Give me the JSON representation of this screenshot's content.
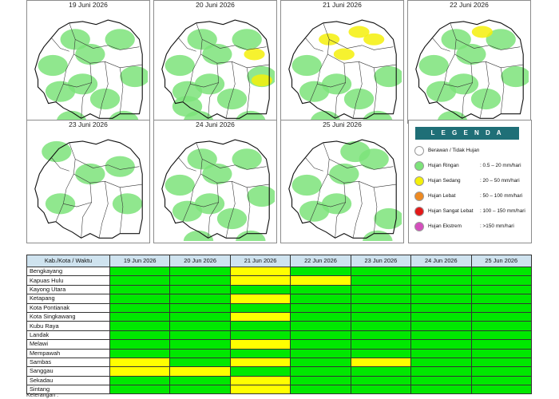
{
  "maps": [
    {
      "date": "19 Juni 2026",
      "rain": [
        [
          40,
          110,
          "L"
        ],
        [
          80,
          60,
          "L"
        ],
        [
          120,
          40,
          "L"
        ],
        [
          55,
          150,
          "L"
        ],
        [
          100,
          120,
          "L"
        ],
        [
          140,
          90,
          "L"
        ],
        [
          30,
          75,
          "L"
        ],
        [
          70,
          100,
          "L"
        ],
        [
          125,
          150,
          "L"
        ],
        [
          60,
          40,
          "L"
        ]
      ]
    },
    {
      "date": "20 Juni 2026",
      "rain": [
        [
          40,
          110,
          "L"
        ],
        [
          80,
          60,
          "L"
        ],
        [
          120,
          40,
          "L"
        ],
        [
          55,
          150,
          "L"
        ],
        [
          100,
          120,
          "L"
        ],
        [
          140,
          90,
          "L"
        ],
        [
          30,
          75,
          "L"
        ],
        [
          70,
          100,
          "L"
        ],
        [
          125,
          150,
          "L"
        ],
        [
          60,
          40,
          "L"
        ],
        [
          130,
          60,
          "S"
        ],
        [
          140,
          95,
          "S"
        ],
        [
          40,
          130,
          "L"
        ]
      ]
    },
    {
      "date": "21 Juni 2026",
      "rain": [
        [
          40,
          110,
          "L"
        ],
        [
          80,
          60,
          "S"
        ],
        [
          120,
          40,
          "S"
        ],
        [
          55,
          150,
          "L"
        ],
        [
          100,
          120,
          "L"
        ],
        [
          140,
          90,
          "L"
        ],
        [
          30,
          75,
          "L"
        ],
        [
          70,
          100,
          "L"
        ],
        [
          125,
          150,
          "L"
        ],
        [
          60,
          40,
          "S"
        ],
        [
          100,
          30,
          "S"
        ]
      ]
    },
    {
      "date": "22 Juni 2026",
      "rain": [
        [
          40,
          110,
          "L"
        ],
        [
          80,
          60,
          "L"
        ],
        [
          120,
          40,
          "L"
        ],
        [
          55,
          150,
          "L"
        ],
        [
          100,
          120,
          "L"
        ],
        [
          140,
          90,
          "L"
        ],
        [
          30,
          75,
          "L"
        ],
        [
          70,
          100,
          "L"
        ],
        [
          95,
          30,
          "S"
        ],
        [
          60,
          40,
          "L"
        ]
      ]
    },
    {
      "date": "23 Juni 2026",
      "rain": [
        [
          35,
          30,
          "L"
        ],
        [
          120,
          50,
          "L"
        ],
        [
          40,
          100,
          "L"
        ],
        [
          80,
          60,
          "L"
        ],
        [
          130,
          100,
          "L"
        ]
      ]
    },
    {
      "date": "24 Juni 2026",
      "rain": [
        [
          40,
          110,
          "L"
        ],
        [
          80,
          60,
          "L"
        ],
        [
          120,
          40,
          "L"
        ],
        [
          55,
          150,
          "L"
        ],
        [
          100,
          120,
          "L"
        ],
        [
          140,
          90,
          "L"
        ],
        [
          30,
          75,
          "L"
        ],
        [
          70,
          100,
          "L"
        ],
        [
          125,
          150,
          "L"
        ],
        [
          60,
          40,
          "L"
        ]
      ]
    },
    {
      "date": "25 Juni 2026",
      "rain": [
        [
          40,
          110,
          "L"
        ],
        [
          80,
          60,
          "L"
        ],
        [
          120,
          40,
          "L"
        ],
        [
          140,
          120,
          "L"
        ],
        [
          30,
          75,
          "L"
        ],
        [
          70,
          100,
          "L"
        ],
        [
          125,
          150,
          "L"
        ],
        [
          95,
          30,
          "L"
        ]
      ]
    }
  ],
  "legend": {
    "title": "L E G E N D A",
    "items": [
      {
        "label": "Berawan / Tidak Hujan",
        "range": "",
        "color": "#ffffff"
      },
      {
        "label": "Hujan Ringan",
        "range": ": 0.5 – 20 mm/hari",
        "color": "#7de37a"
      },
      {
        "label": "Hujan Sedang",
        "range": ": 20 – 50 mm/hari",
        "color": "#f4f00a"
      },
      {
        "label": "Hujan Lebat",
        "range": ": 50 – 100 mm/hari",
        "color": "#ee8a22"
      },
      {
        "label": "Hujan Sangat Lebat",
        "range": ": 100 – 150 mm/hari",
        "color": "#e31818"
      },
      {
        "label": "Hujan Ekstrem",
        "range": ": >150 mm/hari",
        "color": "#d44fbd"
      }
    ]
  },
  "table": {
    "header": [
      "Kab./Kota / Waktu",
      "19 Jun 2026",
      "20 Jun 2026",
      "21 Jun 2026",
      "22 Jun 2026",
      "23 Jun 2026",
      "24 Jun 2026",
      "25 Jun 2026"
    ],
    "rows": [
      {
        "name": "Bengkayang",
        "values": [
          "ringan",
          "ringan",
          "sedang",
          "ringan",
          "ringan",
          "ringan",
          "ringan"
        ]
      },
      {
        "name": "Kapuas Hulu",
        "values": [
          "ringan",
          "ringan",
          "sedang",
          "sedang",
          "ringan",
          "ringan",
          "ringan"
        ]
      },
      {
        "name": "Kayong Utara",
        "values": [
          "ringan",
          "ringan",
          "ringan",
          "ringan",
          "ringan",
          "ringan",
          "ringan"
        ]
      },
      {
        "name": "Ketapang",
        "values": [
          "ringan",
          "ringan",
          "sedang",
          "ringan",
          "ringan",
          "ringan",
          "ringan"
        ]
      },
      {
        "name": "Kota Pontianak",
        "values": [
          "ringan",
          "ringan",
          "ringan",
          "ringan",
          "ringan",
          "ringan",
          "ringan"
        ]
      },
      {
        "name": "Kota Singkawang",
        "values": [
          "ringan",
          "ringan",
          "sedang",
          "ringan",
          "ringan",
          "ringan",
          "ringan"
        ]
      },
      {
        "name": "Kubu Raya",
        "values": [
          "ringan",
          "ringan",
          "ringan",
          "ringan",
          "ringan",
          "ringan",
          "ringan"
        ]
      },
      {
        "name": "Landak",
        "values": [
          "ringan",
          "ringan",
          "ringan",
          "ringan",
          "ringan",
          "ringan",
          "ringan"
        ]
      },
      {
        "name": "Melawi",
        "values": [
          "ringan",
          "ringan",
          "sedang",
          "ringan",
          "ringan",
          "ringan",
          "ringan"
        ]
      },
      {
        "name": "Mempawah",
        "values": [
          "ringan",
          "ringan",
          "ringan",
          "ringan",
          "ringan",
          "ringan",
          "ringan"
        ]
      },
      {
        "name": "Sambas",
        "values": [
          "sedang",
          "ringan",
          "sedang",
          "ringan",
          "sedang",
          "ringan",
          "ringan"
        ]
      },
      {
        "name": "Sanggau",
        "values": [
          "sedang",
          "sedang",
          "ringan",
          "ringan",
          "ringan",
          "ringan",
          "ringan"
        ]
      },
      {
        "name": "Sekadau",
        "values": [
          "ringan",
          "ringan",
          "sedang",
          "ringan",
          "ringan",
          "ringan",
          "ringan"
        ]
      },
      {
        "name": "Sintang",
        "values": [
          "ringan",
          "ringan",
          "sedang",
          "ringan",
          "ringan",
          "ringan",
          "ringan"
        ]
      }
    ],
    "colors": {
      "ringan": "#00e800",
      "sedang": "#ffff00"
    }
  },
  "note": "Keterangan :"
}
